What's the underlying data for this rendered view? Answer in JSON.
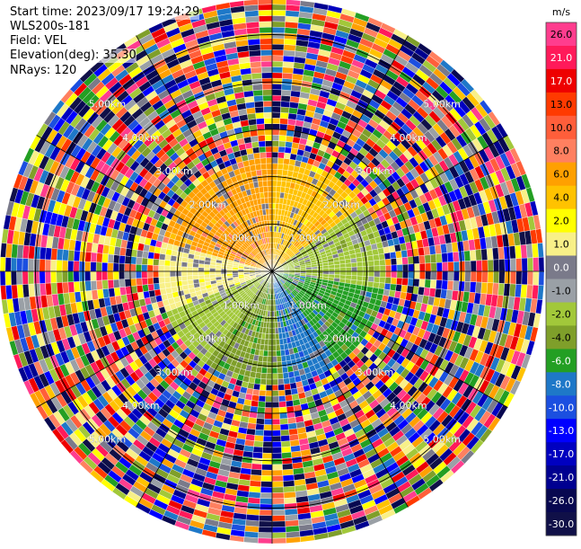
{
  "header": {
    "start_time": "Start time: 2023/09/17 19:24:29",
    "site": "WLS200s-181",
    "field": "Field: VEL",
    "elevation": "Elevation(deg): 35.30",
    "nrays": "NRays: 120"
  },
  "chart_data": {
    "type": "heatmap",
    "projection": "polar PPI",
    "field": "VEL",
    "n_rays": 120,
    "range_ring_labels": [
      "1.00km",
      "2.00km",
      "3.00km",
      "4.00km",
      "5.00km"
    ],
    "max_range_km": 5.75,
    "inner_field_region_km": 2.3,
    "colorbar": {
      "unit": "m/s",
      "ticks": [
        "26.0",
        "21.0",
        "17.0",
        "13.0",
        "10.0",
        "8.0",
        "6.0",
        "4.0",
        "2.0",
        "1.0",
        "0.0",
        "-1.0",
        "-2.0",
        "-4.0",
        "-6.0",
        "-8.0",
        "-10.0",
        "-13.0",
        "-17.0",
        "-21.0",
        "-26.0",
        "-30.0"
      ],
      "colors": [
        "#ff3d8e",
        "#ff1a5a",
        "#ee0000",
        "#ff3a00",
        "#ff5e3a",
        "#ff8060",
        "#ffa000",
        "#ffc200",
        "#ffff00",
        "#f8f088",
        "#7a7a8a",
        "#9aa0a6",
        "#a2c83a",
        "#7f9f2a",
        "#239f23",
        "#1e78c8",
        "#1b4fe0",
        "#0000ff",
        "#0000c0",
        "#000090",
        "#080850",
        "#101048"
      ]
    },
    "dominant_pattern": [
      {
        "azimuth_from_deg": 285,
        "azimuth_to_deg": 360,
        "value": "6.0"
      },
      {
        "azimuth_from_deg": 0,
        "azimuth_to_deg": 55,
        "value": "4.0"
      },
      {
        "azimuth_from_deg": 55,
        "azimuth_to_deg": 100,
        "value": "-2.0"
      },
      {
        "azimuth_from_deg": 100,
        "azimuth_to_deg": 145,
        "value": "-6.0"
      },
      {
        "azimuth_from_deg": 145,
        "azimuth_to_deg": 175,
        "value": "-8.0"
      },
      {
        "azimuth_from_deg": 175,
        "azimuth_to_deg": 215,
        "value": "-4.0"
      },
      {
        "azimuth_from_deg": 215,
        "azimuth_to_deg": 250,
        "value": "-2.0"
      },
      {
        "azimuth_from_deg": 250,
        "azimuth_to_deg": 285,
        "value": "1.0"
      }
    ],
    "grid": true
  }
}
